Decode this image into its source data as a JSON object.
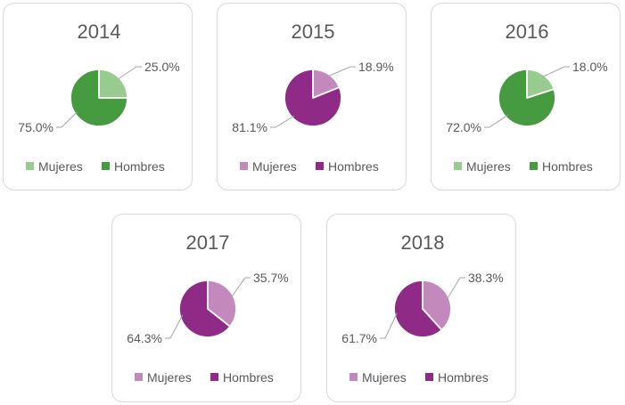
{
  "colors": {
    "green_light": "#97cb8f",
    "green_dark": "#469b40",
    "purple_light": "#c389bd",
    "purple_dark": "#8f2a87",
    "text": "#595959",
    "leader": "#a6a6a6"
  },
  "chart_data": [
    {
      "type": "pie",
      "title": "2014",
      "legend": [
        "Mujeres",
        "Hombres"
      ],
      "values": [
        25.0,
        75.0
      ],
      "labels": [
        "25.0%",
        "75.0%"
      ],
      "palette": "green"
    },
    {
      "type": "pie",
      "title": "2015",
      "legend": [
        "Mujeres",
        "Hombres"
      ],
      "values": [
        18.9,
        81.1
      ],
      "labels": [
        "18.9%",
        "81.1%"
      ],
      "palette": "purple"
    },
    {
      "type": "pie",
      "title": "2016",
      "legend": [
        "Mujeres",
        "Hombres"
      ],
      "values": [
        18.0,
        72.0
      ],
      "labels": [
        "18.0%",
        "72.0%"
      ],
      "palette": "green"
    },
    {
      "type": "pie",
      "title": "2017",
      "legend": [
        "Mujeres",
        "Hombres"
      ],
      "values": [
        35.7,
        64.3
      ],
      "labels": [
        "35.7%",
        "64.3%"
      ],
      "palette": "purple"
    },
    {
      "type": "pie",
      "title": "2018",
      "legend": [
        "Mujeres",
        "Hombres"
      ],
      "values": [
        38.3,
        61.7
      ],
      "labels": [
        "38.3%",
        "61.7%"
      ],
      "palette": "purple"
    }
  ]
}
